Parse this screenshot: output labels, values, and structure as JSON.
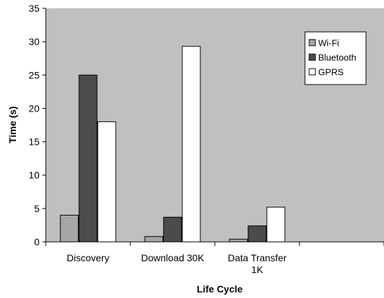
{
  "chart_data": {
    "type": "bar",
    "title": "",
    "xlabel": "Life Cycle",
    "ylabel": "Time (s)",
    "ylim": [
      0,
      35
    ],
    "yticks": [
      "0",
      "5",
      "10",
      "15",
      "20",
      "25",
      "30",
      "35"
    ],
    "grid": false,
    "legend_position": "top-right",
    "categories": [
      {
        "id": "discovery",
        "lines": [
          "Discovery"
        ]
      },
      {
        "id": "download-30k",
        "lines": [
          "Download 30K"
        ]
      },
      {
        "id": "data-transfer-1k",
        "lines": [
          "Data Transfer",
          "1K"
        ]
      },
      {
        "id": "empty",
        "lines": []
      }
    ],
    "series": [
      {
        "name": "Wi-Fi",
        "color": "#a6a6a6",
        "values": [
          4.0,
          0.8,
          0.4,
          null
        ]
      },
      {
        "name": "Bluetooth",
        "color": "#4b4b4b",
        "values": [
          25.0,
          3.7,
          2.4,
          null
        ]
      },
      {
        "name": "GPRS",
        "color": "#ffffff",
        "values": [
          18.0,
          29.3,
          5.2,
          null
        ]
      }
    ],
    "colors": {
      "plot_background": "#c0c0c0",
      "axis": "#000000"
    }
  }
}
